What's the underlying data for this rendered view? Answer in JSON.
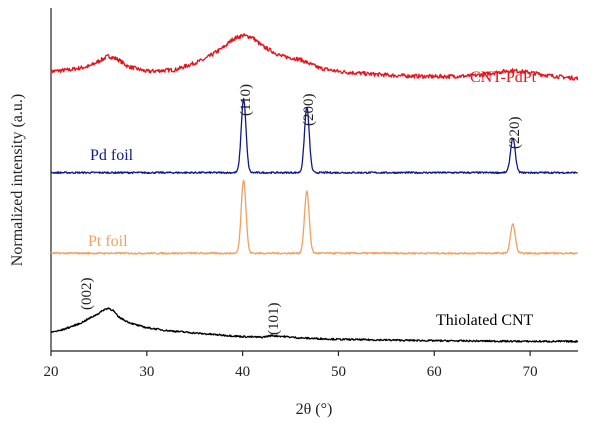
{
  "chart_data": {
    "type": "line",
    "title": "",
    "xlabel": "2θ (°)",
    "ylabel": "Normalized intensity (a.u.)",
    "xlim": [
      20,
      75
    ],
    "xticks": [
      "20",
      "30",
      "40",
      "50",
      "60",
      "70"
    ],
    "yticks": [],
    "grid": false,
    "legend": "inline labels",
    "series": [
      {
        "name": "CNT-PdPt",
        "color": "#e8141c",
        "baseline": 0.8,
        "x": [
          20,
          22,
          24,
          25,
          26,
          27,
          28,
          30,
          33,
          36,
          38,
          39,
          40,
          41,
          42,
          44,
          46,
          48,
          50,
          53,
          56,
          60,
          64,
          66,
          68,
          70,
          72,
          74,
          75
        ],
        "y": [
          0.815,
          0.82,
          0.83,
          0.845,
          0.86,
          0.85,
          0.83,
          0.815,
          0.82,
          0.85,
          0.885,
          0.91,
          0.92,
          0.915,
          0.89,
          0.86,
          0.85,
          0.825,
          0.815,
          0.808,
          0.803,
          0.8,
          0.802,
          0.81,
          0.818,
          0.812,
          0.803,
          0.797,
          0.795
        ]
      },
      {
        "name": "Pd foil",
        "color": "#0f1a8a",
        "baseline": 0.52,
        "peaks": [
          {
            "x": 40.1,
            "height": 0.215,
            "width": 0.35
          },
          {
            "x": 46.7,
            "height": 0.19,
            "width": 0.35
          },
          {
            "x": 68.2,
            "height": 0.1,
            "width": 0.35
          }
        ]
      },
      {
        "name": "Pt foil",
        "color": "#f0a060",
        "baseline": 0.285,
        "peaks": [
          {
            "x": 40.1,
            "height": 0.215,
            "width": 0.35
          },
          {
            "x": 46.7,
            "height": 0.18,
            "width": 0.35
          },
          {
            "x": 68.2,
            "height": 0.085,
            "width": 0.35
          }
        ]
      },
      {
        "name": "Thiolated CNT",
        "color": "#000000",
        "baseline": 0.03,
        "x": [
          20,
          21,
          22,
          23,
          24,
          25,
          25.5,
          26,
          26.5,
          27,
          28,
          29,
          30,
          32,
          34,
          36,
          38,
          40,
          42,
          43,
          44,
          46,
          48,
          50,
          55,
          60,
          65,
          70,
          75
        ],
        "y": [
          0.055,
          0.06,
          0.07,
          0.08,
          0.095,
          0.11,
          0.12,
          0.125,
          0.118,
          0.1,
          0.085,
          0.075,
          0.068,
          0.06,
          0.055,
          0.05,
          0.046,
          0.042,
          0.04,
          0.045,
          0.043,
          0.038,
          0.036,
          0.034,
          0.032,
          0.03,
          0.029,
          0.028,
          0.028
        ]
      }
    ],
    "annotations": [
      {
        "text": "(110)",
        "x": 40.1
      },
      {
        "text": "(200)",
        "x": 46.7
      },
      {
        "text": "(220)",
        "x": 68.2
      },
      {
        "text": "(002)",
        "x": 23.8
      },
      {
        "text": "(101)",
        "x": 43.4
      }
    ]
  }
}
